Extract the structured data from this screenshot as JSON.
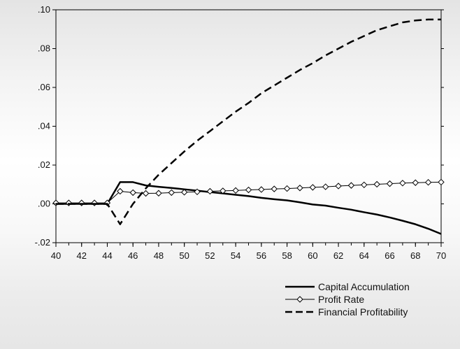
{
  "chart_data": {
    "type": "line",
    "title": "",
    "xlabel": "",
    "ylabel": "",
    "xlim": [
      40,
      70
    ],
    "ylim": [
      -0.02,
      0.1
    ],
    "x_ticks": [
      40,
      42,
      44,
      46,
      48,
      50,
      52,
      54,
      56,
      58,
      60,
      62,
      64,
      66,
      68,
      70
    ],
    "x_tick_labels": [
      "40",
      "42",
      "44",
      "46",
      "48",
      "50",
      "52",
      "54",
      "56",
      "58",
      "60",
      "62",
      "64",
      "66",
      "68",
      "70"
    ],
    "y_ticks": [
      -0.02,
      0.0,
      0.02,
      0.04,
      0.06,
      0.08,
      0.1
    ],
    "y_tick_labels": [
      "-.02",
      ".00",
      ".02",
      ".04",
      ".06",
      ".08",
      ".10"
    ],
    "grid": false,
    "legend_position": "bottom-right",
    "x": [
      40,
      41,
      42,
      43,
      44,
      45,
      46,
      47,
      48,
      49,
      50,
      51,
      52,
      53,
      54,
      55,
      56,
      57,
      58,
      59,
      60,
      61,
      62,
      63,
      64,
      65,
      66,
      67,
      68,
      69,
      70
    ],
    "series": [
      {
        "name": "Capital Accumulation",
        "style": "solid-thick",
        "color": "#000000",
        "values": [
          0.0,
          0.0,
          0.0,
          0.0,
          0.0,
          0.0112,
          0.0112,
          0.0095,
          0.0088,
          0.0082,
          0.0075,
          0.0068,
          0.0061,
          0.0054,
          0.0047,
          0.004,
          0.0031,
          0.0024,
          0.0018,
          0.0008,
          -0.0003,
          -0.0009,
          -0.002,
          -0.003,
          -0.0043,
          -0.0055,
          -0.007,
          -0.0087,
          -0.0105,
          -0.0128,
          -0.0155
        ]
      },
      {
        "name": "Profit Rate",
        "style": "thin-diamond-markers",
        "color": "#000000",
        "values": [
          0.0005,
          0.0005,
          0.0005,
          0.0005,
          0.0005,
          0.0065,
          0.0058,
          0.0054,
          0.0055,
          0.0058,
          0.006,
          0.0062,
          0.0065,
          0.0067,
          0.0069,
          0.0072,
          0.0074,
          0.0077,
          0.0079,
          0.0082,
          0.0085,
          0.0088,
          0.0092,
          0.0095,
          0.0098,
          0.0101,
          0.0104,
          0.0107,
          0.0109,
          0.0111,
          0.0112
        ]
      },
      {
        "name": "Financial Profitability",
        "style": "dashed-thick",
        "color": "#000000",
        "values": [
          0.0,
          0.0,
          0.0,
          0.0,
          0.0,
          -0.0105,
          0.0,
          0.008,
          0.015,
          0.021,
          0.027,
          0.0325,
          0.0375,
          0.0425,
          0.0475,
          0.052,
          0.057,
          0.061,
          0.065,
          0.069,
          0.0725,
          0.0765,
          0.08,
          0.0835,
          0.0865,
          0.0895,
          0.0915,
          0.0935,
          0.0945,
          0.095,
          0.095
        ]
      }
    ]
  }
}
